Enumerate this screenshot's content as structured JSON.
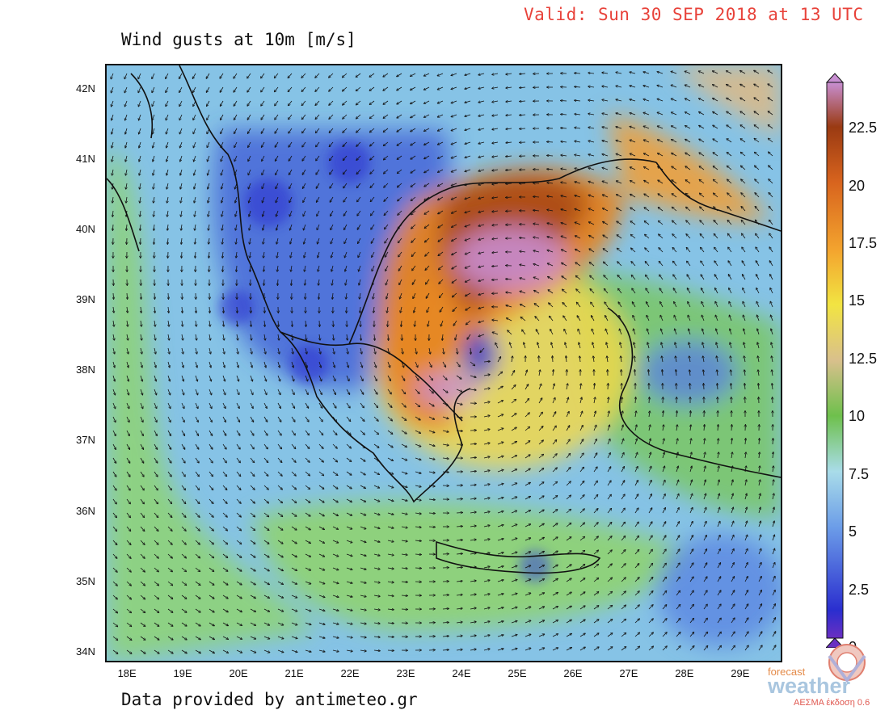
{
  "header": {
    "valid_text": "Valid: Sun 30 SEP 2018 at 13 UTC",
    "title": "Wind gusts at 10m [m/s]"
  },
  "footer": {
    "credit": "Data provided by antimeteo.gr"
  },
  "map": {
    "lat_labels": [
      "42N",
      "41N",
      "40N",
      "39N",
      "38N",
      "37N",
      "36N",
      "35N",
      "34N"
    ],
    "lon_labels": [
      "18E",
      "19E",
      "20E",
      "21E",
      "22E",
      "23E",
      "24E",
      "25E",
      "26E",
      "27E",
      "28E",
      "29E"
    ],
    "lat_values": [
      42,
      41,
      40,
      39,
      38,
      37,
      36,
      35,
      34
    ],
    "lon_values": [
      18,
      19,
      20,
      21,
      22,
      23,
      24,
      25,
      26,
      27,
      28,
      29
    ],
    "lat_range": [
      33.85,
      42.35
    ],
    "lon_range": [
      17.6,
      29.75
    ],
    "cyclone_center": {
      "lon": 24.4,
      "lat": 38.3
    },
    "peak_gust_region": "Aegean Sea / northern Aegean"
  },
  "colorbar": {
    "unit": "m/s",
    "labels": [
      "22.5",
      "20",
      "17.5",
      "15",
      "12.5",
      "10",
      "7.5",
      "5",
      "2.5",
      "0"
    ],
    "label_values": [
      22.5,
      20,
      17.5,
      15,
      12.5,
      10,
      7.5,
      5,
      2.5,
      0
    ],
    "range": [
      0,
      24.5
    ],
    "colors": {
      "0": "#6a2fc2",
      "2.5": "#2a2ecf",
      "5": "#6c9de8",
      "7.5": "#a9dce9",
      "10": "#6ec04c",
      "12.5": "#d9c08c",
      "15": "#f2e442",
      "17.5": "#f3a32e",
      "20": "#d8641e",
      "22.5": "#9a3a12",
      "24": "#c88fd2"
    }
  },
  "logo": {
    "small_text": "forecast",
    "brand_text": "weather",
    "version_text": "ΑΕΣΜΑ έκδοση 0.6"
  }
}
